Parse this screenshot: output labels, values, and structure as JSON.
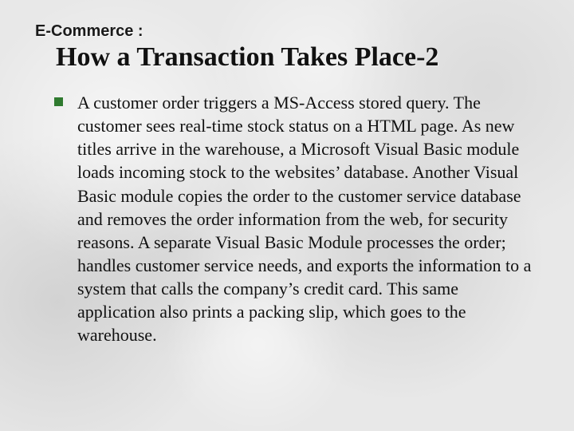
{
  "kicker": "E-Commerce :",
  "title": "How a Transaction Takes Place-2",
  "bullet_color": "#2f7a2f",
  "body": "A customer order triggers a MS-Access stored query. The customer sees real-time stock status on a HTML page. As new titles arrive in the warehouse, a Microsoft Visual Basic module loads incoming stock to the websites’ database. Another Visual Basic module copies the order to the customer service database and removes the order information from the web, for security reasons. A separate Visual Basic Module processes the order; handles customer service needs, and exports the information to a system that calls the company’s credit card. This same application also prints a packing slip, which goes to the warehouse."
}
